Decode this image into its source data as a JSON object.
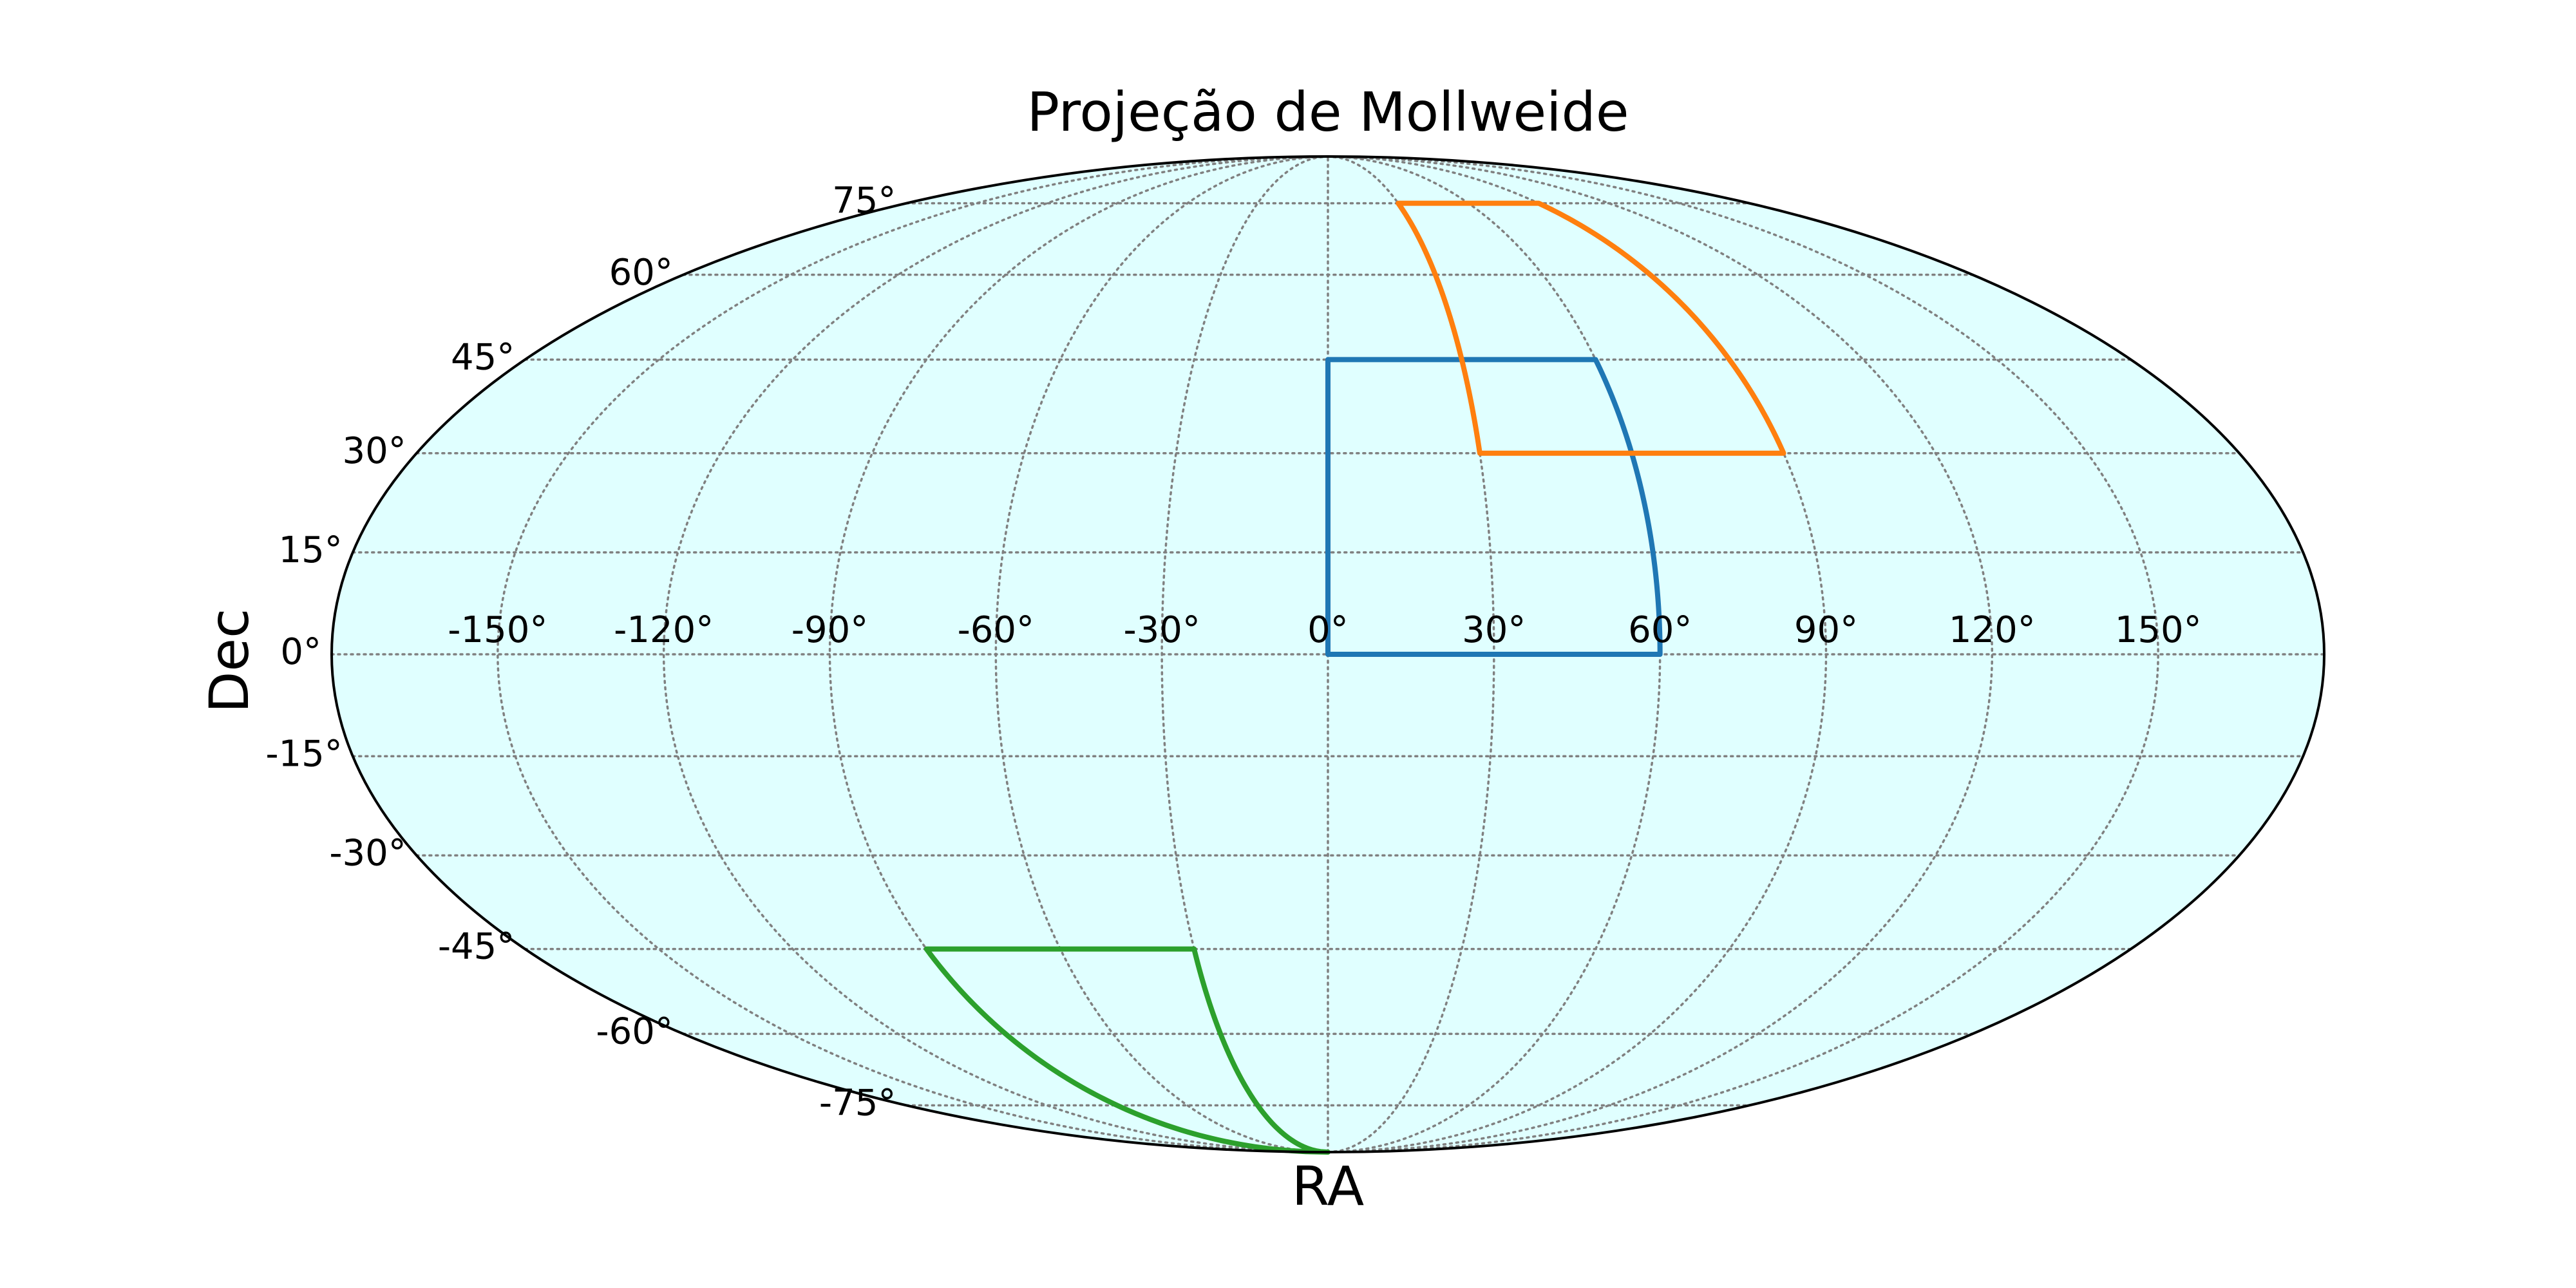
{
  "chart_data": {
    "type": "map",
    "projection": "mollweide",
    "title": "Projeção de Mollweide",
    "xlabel": "RA",
    "ylabel": "Dec",
    "background_color": "#e0ffff",
    "grid": true,
    "grid_style": "dotted",
    "xlim": [
      -180,
      180
    ],
    "ylim": [
      -90,
      90
    ],
    "x_ticks": [
      -150,
      -120,
      -90,
      -60,
      -30,
      0,
      30,
      60,
      90,
      120,
      150
    ],
    "x_tick_labels": [
      "-150°",
      "-120°",
      "-90°",
      "-60°",
      "-30°",
      "0°",
      "30°",
      "60°",
      "90°",
      "120°",
      "150°"
    ],
    "y_ticks": [
      -75,
      -60,
      -45,
      -30,
      -15,
      0,
      15,
      30,
      45,
      60,
      75
    ],
    "y_tick_labels": [
      "-75°",
      "-60°",
      "-45°",
      "-30°",
      "-15°",
      "0°",
      "15°",
      "30°",
      "45°",
      "60°",
      "75°"
    ],
    "series": [
      {
        "color": "#1f77b4",
        "ra": [
          0,
          60
        ],
        "dec": [
          0,
          45
        ]
      },
      {
        "color": "#ff7f0e",
        "ra": [
          30,
          90
        ],
        "dec": [
          30,
          75
        ]
      },
      {
        "color": "#2ca02c",
        "ra": [
          -90,
          -30
        ],
        "dec": [
          -90,
          -45
        ]
      }
    ]
  }
}
